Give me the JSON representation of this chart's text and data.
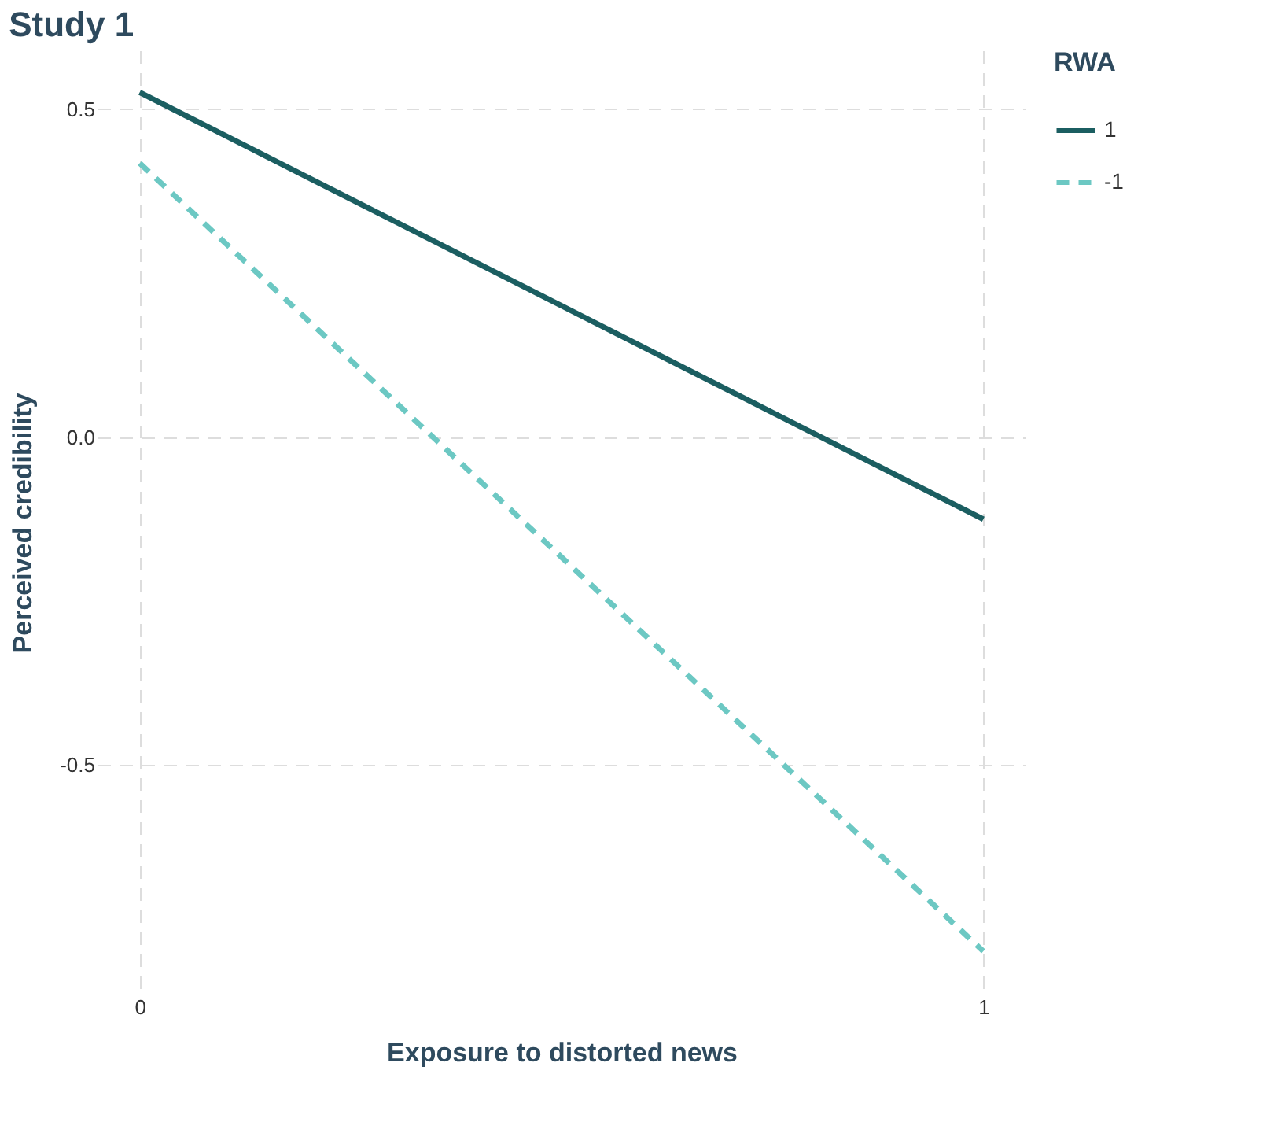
{
  "chart_data": {
    "type": "line",
    "title": "Study 1",
    "xlabel": "Exposure to distorted news",
    "ylabel": "Perceived credibility",
    "legend_title": "RWA",
    "x": [
      0,
      1
    ],
    "series": [
      {
        "name": "1",
        "color": "#1b5e61",
        "values": [
          0.526,
          -0.125
        ],
        "line_style": "solid"
      },
      {
        "name": "-1",
        "color": "#6cc8c3",
        "values": [
          0.418,
          -0.784
        ],
        "line_style": "dashed"
      }
    ],
    "xlim": [
      -0.05,
      1.05
    ],
    "ylim": [
      -0.85,
      0.59
    ],
    "xticks": [
      0,
      1
    ],
    "yticks": [
      -0.5,
      {
        "value": 0,
        "label": "0.0"
      },
      0.5
    ],
    "grid": true,
    "legend": "right",
    "marker": "none"
  }
}
